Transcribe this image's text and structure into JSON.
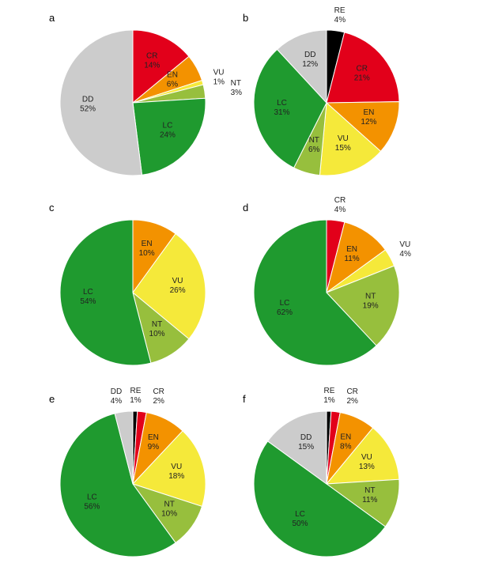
{
  "chart_data": [
    {
      "type": "pie",
      "title": "a",
      "categories": [
        "CR",
        "EN",
        "VU",
        "NT",
        "LC",
        "DD"
      ],
      "values": [
        14,
        6,
        1,
        3,
        24,
        52
      ],
      "value_labels": [
        "14%",
        "6%",
        "1%",
        "3%",
        "24%",
        "52%"
      ],
      "colors": [
        "#e2001a",
        "#f39200",
        "#f5e93a",
        "#97bf3d",
        "#1f9a2f",
        "#cccccc"
      ]
    },
    {
      "type": "pie",
      "title": "b",
      "categories": [
        "RE",
        "CR",
        "EN",
        "VU",
        "NT",
        "LC",
        "DD"
      ],
      "values": [
        4,
        21,
        12,
        15,
        6,
        31,
        12
      ],
      "value_labels": [
        "4%",
        "21%",
        "12%",
        "15%",
        "6%",
        "31%",
        "12%"
      ],
      "colors": [
        "#000000",
        "#e2001a",
        "#f39200",
        "#f5e93a",
        "#97bf3d",
        "#1f9a2f",
        "#cccccc"
      ]
    },
    {
      "type": "pie",
      "title": "c",
      "categories": [
        "EN",
        "VU",
        "NT",
        "LC"
      ],
      "values": [
        10,
        26,
        10,
        54
      ],
      "value_labels": [
        "10%",
        "26%",
        "10%",
        "54%"
      ],
      "colors": [
        "#f39200",
        "#f5e93a",
        "#97bf3d",
        "#1f9a2f"
      ]
    },
    {
      "type": "pie",
      "title": "d",
      "categories": [
        "CR",
        "EN",
        "VU",
        "NT",
        "LC"
      ],
      "values": [
        4,
        11,
        4,
        19,
        62
      ],
      "value_labels": [
        "4%",
        "11%",
        "4%",
        "19%",
        "62%"
      ],
      "colors": [
        "#e2001a",
        "#f39200",
        "#f5e93a",
        "#97bf3d",
        "#1f9a2f"
      ]
    },
    {
      "type": "pie",
      "title": "e",
      "categories": [
        "RE",
        "CR",
        "EN",
        "VU",
        "NT",
        "LC",
        "DD"
      ],
      "values": [
        1,
        2,
        9,
        18,
        10,
        56,
        4
      ],
      "value_labels": [
        "1%",
        "2%",
        "9%",
        "18%",
        "10%",
        "56%",
        "4%"
      ],
      "colors": [
        "#000000",
        "#e2001a",
        "#f39200",
        "#f5e93a",
        "#97bf3d",
        "#1f9a2f",
        "#cccccc"
      ]
    },
    {
      "type": "pie",
      "title": "f",
      "categories": [
        "RE",
        "CR",
        "EN",
        "VU",
        "NT",
        "LC",
        "DD"
      ],
      "values": [
        1,
        2,
        8,
        13,
        11,
        50,
        15
      ],
      "value_labels": [
        "1%",
        "2%",
        "8%",
        "13%",
        "11%",
        "50%",
        "15%"
      ],
      "colors": [
        "#000000",
        "#e2001a",
        "#f39200",
        "#f5e93a",
        "#97bf3d",
        "#1f9a2f",
        "#cccccc"
      ]
    }
  ]
}
